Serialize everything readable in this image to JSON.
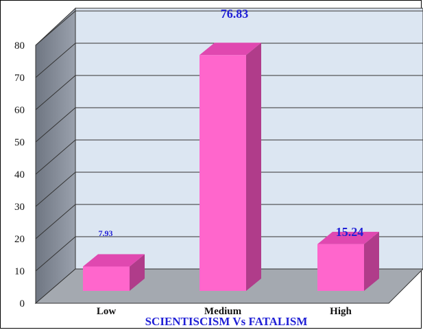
{
  "chart_data": {
    "type": "bar",
    "title": "SCIENTISCISM Vs FATALISM",
    "categories": [
      "Low",
      "Medium",
      "High"
    ],
    "values": [
      7.93,
      76.83,
      15.24
    ],
    "data_labels": [
      "7.93",
      "76.83",
      "15.24"
    ],
    "ylim": [
      0,
      80
    ],
    "yticks": [
      "0",
      "10",
      "20",
      "30",
      "40",
      "50",
      "60",
      "70",
      "80"
    ],
    "grid": true,
    "legend": "none",
    "style": "3d",
    "colors": {
      "bar_front": "#ff66cc",
      "bar_top": "#e048b0",
      "bar_side": "#b03c8a",
      "back_wall": "#dce6f2",
      "side_wall": "#8f96a3",
      "floor": "#a4a9b0",
      "label": "#1f1fd6"
    }
  }
}
